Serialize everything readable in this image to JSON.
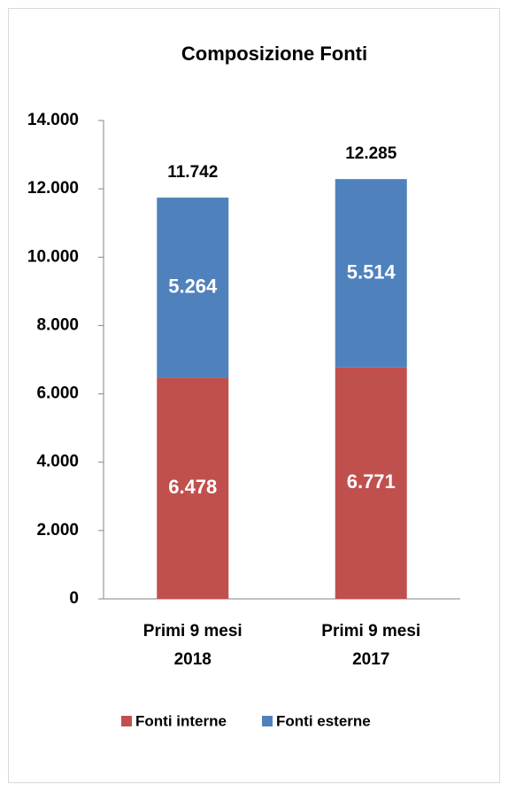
{
  "chart_data": {
    "type": "stacked-bar",
    "title": "Composizione Fonti",
    "categories": [
      "Primi 9 mesi\n2018",
      "Primi 9 mesi\n2017"
    ],
    "series": [
      {
        "name": "Fonti interne",
        "color": "#c0504d",
        "values": [
          6478,
          6771
        ],
        "value_labels": [
          "6.478",
          "6.771"
        ]
      },
      {
        "name": "Fonti esterne",
        "color": "#4f81bd",
        "values": [
          5264,
          5514
        ],
        "value_labels": [
          "5.264",
          "5.514"
        ]
      }
    ],
    "totals": {
      "values": [
        11742,
        12285
      ],
      "value_labels": [
        "11.742",
        "12.285"
      ]
    },
    "ylim": [
      0,
      14000
    ],
    "yticks": [
      0,
      {
        "value": 2000,
        "label": "2.000"
      },
      {
        "value": 4000,
        "label": "4.000"
      },
      {
        "value": 6000,
        "label": "6.000"
      },
      {
        "value": 8000,
        "label": "8.000"
      },
      {
        "value": 10000,
        "label": "10.000"
      },
      {
        "value": 12000,
        "label": "12.000"
      },
      {
        "value": 14000,
        "label": "14.000"
      }
    ],
    "grid": false,
    "legend": "bottom"
  }
}
